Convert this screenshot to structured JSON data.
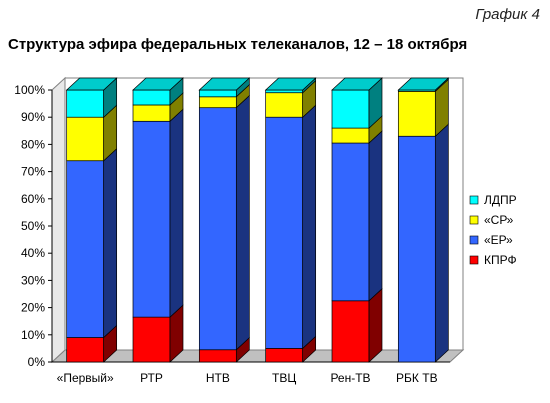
{
  "caption": "График 4",
  "chart_data": {
    "type": "bar",
    "stacked": true,
    "percent": true,
    "three_d": true,
    "title": "Структура эфира федеральных телеканалов, 12 – 18 октября",
    "categories": [
      "«Первый»",
      "РТР",
      "НТВ",
      "ТВЦ",
      "Рен-ТВ",
      "РБК ТВ"
    ],
    "series": [
      {
        "name": "КПРФ",
        "color": "#ff0000",
        "values": [
          9,
          16.5,
          4.5,
          5,
          22.5,
          0
        ]
      },
      {
        "name": "«ЕР»",
        "color": "#3366ff",
        "values": [
          65,
          72,
          89,
          85,
          58,
          83
        ]
      },
      {
        "name": "«СР»",
        "color": "#ffff00",
        "values": [
          16,
          6,
          4,
          9,
          5.5,
          16.5
        ]
      },
      {
        "name": "ЛДПР",
        "color": "#00ffff",
        "values": [
          10,
          5.5,
          2.5,
          1,
          14,
          0.5
        ]
      }
    ],
    "ylim": [
      0,
      100
    ],
    "yticks": [
      "0%",
      "10%",
      "20%",
      "30%",
      "40%",
      "50%",
      "60%",
      "70%",
      "80%",
      "90%",
      "100%"
    ],
    "legend_position": "right",
    "grid": false
  }
}
